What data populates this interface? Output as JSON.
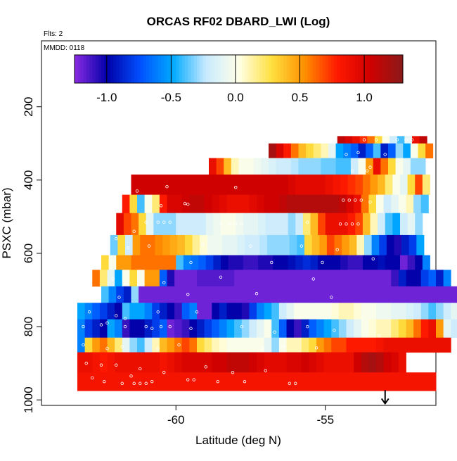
{
  "chart_data": {
    "type": "heatmap",
    "title": "ORCAS RF02 DBARD_LWI (Log)",
    "flights_note": "Flts: 2",
    "date_note": "MMDD: 0118",
    "xlabel": "Latitude (deg N)",
    "ylabel": "PSXC (mbar)",
    "x_ticks": [
      "-60",
      "-55"
    ],
    "y_ticks": [
      "200",
      "400",
      "600",
      "800",
      "1000"
    ],
    "xlim": [
      -64.5,
      -51.3
    ],
    "ylim": [
      1015,
      20
    ],
    "colorbar": {
      "range": [
        -1.25,
        1.3
      ],
      "ticks": [
        "-1.0",
        "-0.5",
        "0.0",
        "0.5",
        "1.0"
      ],
      "colors": [
        "#8a2be2",
        "#0000a8",
        "#0050ff",
        "#00aaff",
        "#c8eaff",
        "#ffffe8",
        "#ffe040",
        "#ff9000",
        "#ff1a00",
        "#d00000",
        "#8b1a1a"
      ]
    },
    "arrow_marker": {
      "latitude": -53.0,
      "pressure": 1010
    },
    "bin_width_deg": 0.25,
    "rows": [
      {
        "p_top": 280,
        "p_bot": 300,
        "lat_start": -54.6,
        "values": [
          1.1,
          1.0,
          0.9,
          0.75,
          0.6,
          0.3,
          0.0,
          -0.2,
          -0.4,
          -0.1,
          0.9,
          1.1
        ]
      },
      {
        "p_top": 300,
        "p_bot": 340,
        "lat_start": -56.9,
        "values": [
          1.2,
          1.0,
          0.8,
          0.6,
          0.4,
          0.3,
          0.2,
          0.1,
          -0.1,
          -0.5,
          -0.6,
          -0.7,
          -0.9,
          -0.7,
          -0.4,
          -0.9,
          -0.7,
          -0.3,
          -0.5,
          0.0,
          0.3,
          0.6
        ]
      },
      {
        "p_top": 340,
        "p_bot": 385,
        "lat_start": -58.9,
        "values": [
          0.9,
          0.7,
          0.4,
          0.1,
          0.0,
          0.0,
          -0.05,
          -0.1,
          -0.15,
          -0.2,
          -0.2,
          -0.25,
          -0.3,
          -0.3,
          -0.3,
          -0.35,
          -0.35,
          -0.4,
          -0.4,
          -0.2,
          0.0,
          0.5,
          0.9,
          0.6,
          0.3,
          0.0,
          -0.1,
          -0.3,
          -0.3
        ]
      },
      {
        "p_top": 385,
        "p_bot": 440,
        "lat_start": -61.5,
        "values": [
          1.05,
          1.05,
          1.05,
          1.05,
          1.05,
          1.05,
          1.05,
          1.05,
          1.05,
          1.05,
          1.05,
          1.05,
          1.05,
          1.05,
          1.05,
          1.05,
          1.05,
          1.05,
          1.05,
          1.05,
          1.05,
          1.0,
          0.95,
          0.95,
          0.95,
          0.95,
          0.9,
          0.85,
          0.8,
          0.75,
          0.7,
          0.6,
          0.5,
          0.4,
          0.2,
          0.0,
          -0.1,
          0.3,
          0.7,
          0.2
        ]
      },
      {
        "p_top": 440,
        "p_bot": 490,
        "lat_start": -61.8,
        "values": [
          0.8,
          0.3,
          -0.4,
          0.0,
          0.2,
          0.8,
          1.0,
          1.0,
          1.05,
          1.1,
          1.1,
          1.05,
          1.0,
          0.95,
          0.9,
          0.9,
          0.9,
          0.95,
          1.0,
          1.05,
          1.05,
          1.1,
          1.15,
          1.15,
          1.15,
          1.15,
          1.15,
          1.15,
          1.15,
          1.1,
          1.0,
          0.9,
          0.6,
          0.3,
          0.0,
          -0.2,
          -0.1,
          0.0,
          0.1,
          -0.3,
          -0.4
        ]
      },
      {
        "p_top": 490,
        "p_bot": 550,
        "lat_start": -62.0,
        "values": [
          0.95,
          0.7,
          0.6,
          0.3,
          -0.1,
          -0.3,
          -0.3,
          -0.3,
          -0.2,
          -0.2,
          -0.2,
          -0.2,
          -0.1,
          -0.05,
          0.0,
          0.0,
          -0.05,
          -0.1,
          -0.1,
          -0.15,
          -0.2,
          -0.2,
          -0.2,
          -0.3,
          -0.2,
          0.2,
          0.4,
          0.7,
          0.9,
          0.9,
          0.9,
          0.8,
          0.7,
          0.4,
          0.1,
          -0.2,
          -0.4,
          -0.5,
          -0.2,
          -0.1,
          -0.3
        ]
      },
      {
        "p_top": 550,
        "p_bot": 605,
        "lat_start": -62.2,
        "values": [
          -0.35,
          0.3,
          -0.2,
          0.5,
          0.6,
          0.6,
          0.55,
          0.5,
          0.45,
          0.4,
          0.3,
          0.15,
          0.05,
          -0.05,
          -0.05,
          -0.1,
          -0.1,
          -0.15,
          -0.2,
          -0.2,
          -0.25,
          -0.3,
          -0.3,
          -0.3,
          -0.35,
          -0.4,
          0.3,
          0.4,
          0.5,
          0.7,
          0.6,
          0.5,
          0.4,
          0.1,
          -0.3,
          -0.6,
          -0.8,
          -1.0,
          -1.05,
          -0.9,
          -0.8,
          -0.5
        ]
      },
      {
        "p_top": 605,
        "p_bot": 645,
        "lat_start": -62.5,
        "values": [
          0.3,
          0.0,
          0.5,
          0.5,
          0.6,
          0.6,
          0.6,
          0.6,
          0.6,
          0.6,
          -0.4,
          -0.6,
          -0.65,
          -0.7,
          -0.8,
          -0.9,
          -1.0,
          -1.05,
          -1.05,
          -1.1,
          -1.1,
          -1.05,
          -1.05,
          -1.0,
          -1.0,
          -0.95,
          -0.9,
          -0.85,
          -0.9,
          -1.0,
          -1.0,
          -1.0,
          -1.05,
          -1.1,
          -1.1,
          -1.0,
          -1.0,
          -0.95,
          -1.0,
          -1.0,
          -1.2,
          -1.1,
          -1.0,
          -0.6
        ]
      },
      {
        "p_top": 645,
        "p_bot": 690,
        "lat_start": -62.8,
        "values": [
          0.6,
          0.2,
          -0.1,
          -0.5,
          0.0,
          0.3,
          0.0,
          0.5,
          0.5,
          -0.7,
          -1.05,
          -1.2,
          -1.2,
          -1.2,
          -1.15,
          -1.15,
          -1.15,
          -1.15,
          -1.15,
          -1.2,
          -1.2,
          -1.2,
          -1.2,
          -1.2,
          -1.2,
          -1.2,
          -1.2,
          -1.2,
          -1.2,
          -1.2,
          -1.2,
          -1.2,
          -1.2,
          -1.2,
          -1.2,
          -1.2,
          -1.2,
          -1.2,
          -1.2,
          -1.2,
          -1.1,
          -0.9,
          -1.0,
          -1.0,
          -0.8,
          -0.7,
          -0.9,
          -0.6
        ]
      },
      {
        "p_top": 690,
        "p_bot": 735,
        "lat_start": -62.5,
        "values": [
          -0.4,
          -0.6,
          -0.8,
          -0.9,
          -0.3,
          -1.2,
          -1.2,
          -1.2,
          -1.2,
          -1.2,
          -1.2,
          -1.2,
          -1.2,
          -1.2,
          -1.2,
          -1.2,
          -1.2,
          -1.2,
          -1.2,
          -1.2,
          -1.2,
          -1.2,
          -1.2,
          -1.2,
          -1.2,
          -1.2,
          -1.2,
          -1.2,
          -1.2,
          -1.2,
          -1.2,
          -1.2,
          -1.2,
          -1.2,
          -1.2,
          -1.2,
          -1.2,
          -1.2,
          -1.2,
          -1.2,
          -1.2,
          -1.2,
          -1.2,
          -1.2,
          -1.2,
          -1.2,
          -1.2,
          -1.2
        ]
      },
      {
        "p_top": 735,
        "p_bot": 780,
        "lat_start": -63.3,
        "values": [
          -0.5,
          -0.6,
          -0.7,
          -0.8,
          -0.9,
          -1.0,
          -0.4,
          -0.5,
          -0.5,
          -0.6,
          -0.8,
          -0.9,
          -1.0,
          -1.1,
          -0.7,
          -0.6,
          -1.2,
          -1.2,
          -1.0,
          -0.9,
          -1.0,
          -1.0,
          -1.05,
          -0.8,
          -0.6,
          -0.5,
          -0.4,
          -0.2,
          -0.1,
          0.0,
          0.0,
          0.0,
          0.0,
          0.0,
          0.05,
          0.1,
          0.1,
          0.05,
          0.0,
          0.0,
          -0.05,
          -0.05,
          -0.1,
          -0.1,
          -0.15,
          -0.2,
          -0.3,
          -0.4,
          -0.3,
          -0.2,
          -0.1,
          -0.1
        ]
      },
      {
        "p_top": 780,
        "p_bot": 830,
        "lat_start": -63.3,
        "values": [
          -0.6,
          -0.8,
          -0.9,
          -1.0,
          -0.5,
          -0.6,
          -1.1,
          -1.0,
          -1.0,
          -0.9,
          -0.8,
          -0.7,
          -1.2,
          -1.15,
          -1.1,
          -1.0,
          -0.9,
          -0.8,
          -0.7,
          -0.6,
          -0.5,
          -0.4,
          -0.3,
          -0.2,
          -0.1,
          0.0,
          -0.4,
          -0.7,
          -1.0,
          -1.1,
          -0.9,
          -0.7,
          -0.6,
          -0.5,
          -0.4,
          -0.3,
          -0.2,
          -0.1,
          0.0,
          0.05,
          0.1,
          0.1,
          0.2,
          0.3,
          0.4,
          0.6,
          0.8,
          0.9,
          0.5,
          -0.1,
          -0.2
        ]
      },
      {
        "p_top": 830,
        "p_bot": 870,
        "lat_start": -63.3,
        "values": [
          -0.6,
          0.3,
          0.5,
          0.6,
          0.4,
          0.2,
          -0.1,
          -0.3,
          -0.4,
          -0.2,
          0.1,
          0.4,
          0.5,
          0.6,
          0.7,
          0.6,
          0.3,
          0.2,
          0.1,
          0.05,
          0.0,
          0.0,
          0.0,
          0.0,
          0.0,
          -0.1,
          -0.3,
          0.0,
          0.1,
          0.1,
          0.2,
          0.3,
          0.5,
          0.6,
          0.7,
          0.7,
          0.8,
          0.8,
          0.8,
          0.8,
          0.85,
          0.9,
          0.9,
          0.9,
          0.9,
          0.9,
          0.9,
          0.9,
          0.9,
          0.9
        ]
      },
      {
        "p_top": 870,
        "p_bot": 925,
        "lat_start": -63.3,
        "values": [
          0.9,
          0.9,
          0.85,
          0.8,
          0.85,
          0.9,
          0.9,
          0.9,
          0.9,
          0.9,
          0.9,
          0.85,
          0.9,
          0.95,
          1.0,
          1.0,
          1.0,
          1.0,
          1.05,
          1.05,
          1.1,
          1.1,
          1.1,
          1.05,
          1.0,
          0.95,
          0.95,
          0.95,
          1.0,
          1.0,
          1.05,
          1.0,
          0.95,
          0.9,
          0.9,
          0.9,
          0.9,
          1.05,
          1.15,
          1.2,
          1.15,
          1.05,
          1.0,
          0.9
        ]
      },
      {
        "p_top": 925,
        "p_bot": 975,
        "lat_start": -63.3,
        "values": [
          0.85,
          0.85,
          0.85,
          0.85,
          0.85,
          0.85,
          0.85,
          0.85,
          0.85,
          0.85,
          0.85,
          0.85,
          0.85,
          0.85,
          0.85,
          0.85,
          0.85,
          0.85,
          0.85,
          0.85,
          0.85,
          0.85,
          0.85,
          0.85,
          0.85,
          0.85,
          0.85,
          0.85,
          0.85,
          0.85,
          0.85,
          0.85,
          0.85,
          0.85,
          0.85,
          0.85,
          0.85,
          0.85,
          0.85,
          0.85,
          0.85,
          0.85,
          0.85,
          0.85,
          0.85,
          0.85,
          0.85,
          0.85
        ]
      }
    ],
    "symbols": [
      {
        "lat": -52.3,
        "p": 290
      },
      {
        "lat": -52.2,
        "p": 290
      },
      {
        "lat": -52.1,
        "p": 290
      },
      {
        "lat": -53.7,
        "p": 290
      },
      {
        "lat": -53.3,
        "p": 290
      },
      {
        "lat": -53.0,
        "p": 290
      },
      {
        "lat": -52.6,
        "p": 290
      },
      {
        "lat": -54.3,
        "p": 330
      },
      {
        "lat": -53.9,
        "p": 325
      },
      {
        "lat": -53.0,
        "p": 330
      },
      {
        "lat": -54.1,
        "p": 375
      },
      {
        "lat": -53.6,
        "p": 375
      },
      {
        "lat": -53.5,
        "p": 365
      },
      {
        "lat": -58.0,
        "p": 420
      },
      {
        "lat": -60.3,
        "p": 418
      },
      {
        "lat": -61.3,
        "p": 430
      },
      {
        "lat": -54.4,
        "p": 455
      },
      {
        "lat": -54.2,
        "p": 455
      },
      {
        "lat": -54.0,
        "p": 455
      },
      {
        "lat": -53.8,
        "p": 455
      },
      {
        "lat": -53.5,
        "p": 460
      },
      {
        "lat": -59.7,
        "p": 464
      },
      {
        "lat": -59.6,
        "p": 466
      },
      {
        "lat": -60.5,
        "p": 470
      },
      {
        "lat": -61.0,
        "p": 515
      },
      {
        "lat": -60.6,
        "p": 515
      },
      {
        "lat": -60.4,
        "p": 515
      },
      {
        "lat": -60.2,
        "p": 515
      },
      {
        "lat": -58.5,
        "p": 520
      },
      {
        "lat": -58.2,
        "p": 520
      },
      {
        "lat": -58.0,
        "p": 520
      },
      {
        "lat": -57.8,
        "p": 520
      },
      {
        "lat": -55.6,
        "p": 515
      },
      {
        "lat": -54.5,
        "p": 520
      },
      {
        "lat": -54.3,
        "p": 520
      },
      {
        "lat": -54.1,
        "p": 520
      },
      {
        "lat": -53.9,
        "p": 520
      },
      {
        "lat": -61.4,
        "p": 540
      },
      {
        "lat": -59.1,
        "p": 575
      },
      {
        "lat": -60.9,
        "p": 580
      },
      {
        "lat": -61.6,
        "p": 585
      },
      {
        "lat": -62.0,
        "p": 560
      },
      {
        "lat": -57.5,
        "p": 580
      },
      {
        "lat": -55.8,
        "p": 580
      },
      {
        "lat": -54.6,
        "p": 590
      },
      {
        "lat": -59.5,
        "p": 625
      },
      {
        "lat": -56.8,
        "p": 625
      },
      {
        "lat": -55.1,
        "p": 625
      },
      {
        "lat": -53.4,
        "p": 615
      },
      {
        "lat": -62.1,
        "p": 670
      },
      {
        "lat": -61.7,
        "p": 680
      },
      {
        "lat": -60.4,
        "p": 680
      },
      {
        "lat": -58.5,
        "p": 665
      },
      {
        "lat": -55.4,
        "p": 670
      },
      {
        "lat": -62.6,
        "p": 715
      },
      {
        "lat": -61.9,
        "p": 720
      },
      {
        "lat": -59.6,
        "p": 712
      },
      {
        "lat": -57.3,
        "p": 710
      },
      {
        "lat": -54.8,
        "p": 720
      },
      {
        "lat": -62.9,
        "p": 760
      },
      {
        "lat": -62.0,
        "p": 770
      },
      {
        "lat": -61.7,
        "p": 778
      },
      {
        "lat": -60.6,
        "p": 760
      },
      {
        "lat": -59.3,
        "p": 760
      },
      {
        "lat": -63.1,
        "p": 800
      },
      {
        "lat": -62.5,
        "p": 795
      },
      {
        "lat": -62.3,
        "p": 790
      },
      {
        "lat": -61.7,
        "p": 800
      },
      {
        "lat": -61.0,
        "p": 800
      },
      {
        "lat": -60.8,
        "p": 805
      },
      {
        "lat": -60.5,
        "p": 800
      },
      {
        "lat": -60.2,
        "p": 800
      },
      {
        "lat": -59.5,
        "p": 805
      },
      {
        "lat": -57.8,
        "p": 800
      },
      {
        "lat": -56.7,
        "p": 815
      },
      {
        "lat": -55.6,
        "p": 800
      },
      {
        "lat": -54.7,
        "p": 810
      },
      {
        "lat": -53.2,
        "p": 825
      },
      {
        "lat": -63.1,
        "p": 850
      },
      {
        "lat": -62.3,
        "p": 860
      },
      {
        "lat": -61.8,
        "p": 855
      },
      {
        "lat": -60.6,
        "p": 860
      },
      {
        "lat": -59.9,
        "p": 850
      },
      {
        "lat": -57.1,
        "p": 860
      },
      {
        "lat": -56.4,
        "p": 855
      },
      {
        "lat": -55.3,
        "p": 858
      },
      {
        "lat": -63.0,
        "p": 900
      },
      {
        "lat": -62.5,
        "p": 905
      },
      {
        "lat": -62.0,
        "p": 905
      },
      {
        "lat": -61.5,
        "p": 935
      },
      {
        "lat": -61.2,
        "p": 915
      },
      {
        "lat": -60.4,
        "p": 925
      },
      {
        "lat": -59.0,
        "p": 910
      },
      {
        "lat": -58.1,
        "p": 925
      },
      {
        "lat": -57.0,
        "p": 920
      },
      {
        "lat": -62.8,
        "p": 940
      },
      {
        "lat": -62.4,
        "p": 950
      },
      {
        "lat": -61.8,
        "p": 955
      },
      {
        "lat": -61.4,
        "p": 955
      },
      {
        "lat": -61.2,
        "p": 955
      },
      {
        "lat": -61.0,
        "p": 955
      },
      {
        "lat": -60.8,
        "p": 950
      },
      {
        "lat": -59.6,
        "p": 945
      },
      {
        "lat": -59.4,
        "p": 945
      },
      {
        "lat": -58.6,
        "p": 950
      },
      {
        "lat": -57.7,
        "p": 950
      },
      {
        "lat": -56.2,
        "p": 955
      },
      {
        "lat": -56.0,
        "p": 955
      }
    ]
  }
}
